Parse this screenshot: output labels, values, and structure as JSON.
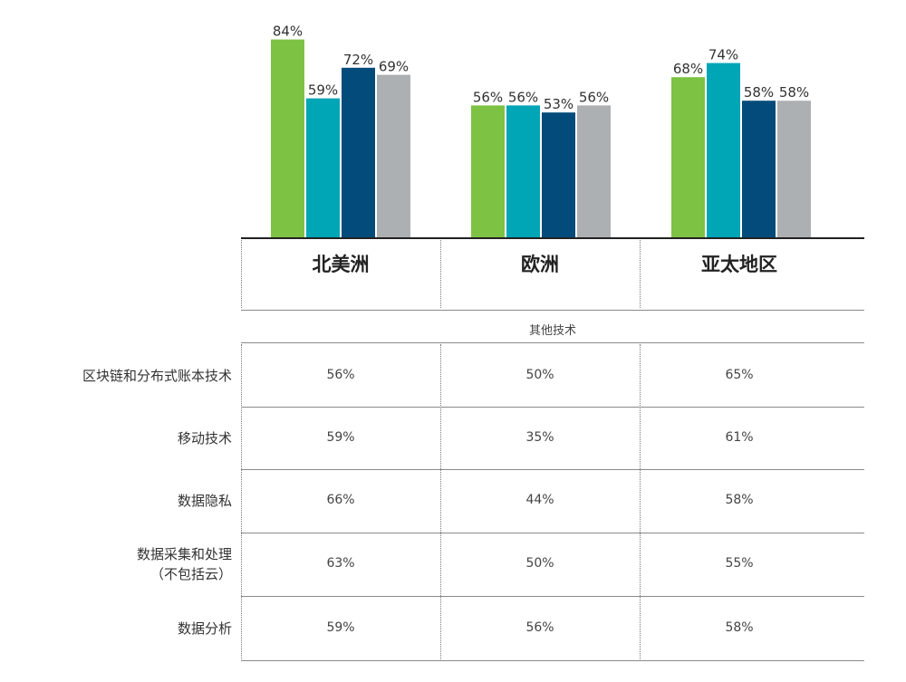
{
  "chart_data": {
    "type": "bar",
    "categories": [
      "北美洲",
      "欧洲",
      "亚太地区"
    ],
    "series": [
      {
        "values": [
          84,
          56,
          68
        ],
        "color": "#7dc242"
      },
      {
        "values": [
          59,
          56,
          74
        ],
        "color": "#00a5b6"
      },
      {
        "values": [
          72,
          53,
          58
        ],
        "color": "#034b7a"
      },
      {
        "values": [
          69,
          56,
          58
        ],
        "color": "#adb0b2"
      }
    ],
    "value_suffix": "%",
    "ylim": [
      0,
      100
    ],
    "grid": false,
    "table": {
      "title": "其他技术",
      "rows": [
        {
          "label_lines": [
            "区块链和分布式账本技术"
          ],
          "values": [
            "56%",
            "50%",
            "65%"
          ]
        },
        {
          "label_lines": [
            "移动技术"
          ],
          "values": [
            "59%",
            "35%",
            "61%"
          ]
        },
        {
          "label_lines": [
            "数据隐私"
          ],
          "values": [
            "66%",
            "44%",
            "58%"
          ]
        },
        {
          "label_lines": [
            "数据采集和处理",
            "（不包括云）"
          ],
          "values": [
            "63%",
            "50%",
            "55%"
          ]
        },
        {
          "label_lines": [
            "数据分析"
          ],
          "values": [
            "59%",
            "56%",
            "58%"
          ]
        }
      ]
    }
  }
}
